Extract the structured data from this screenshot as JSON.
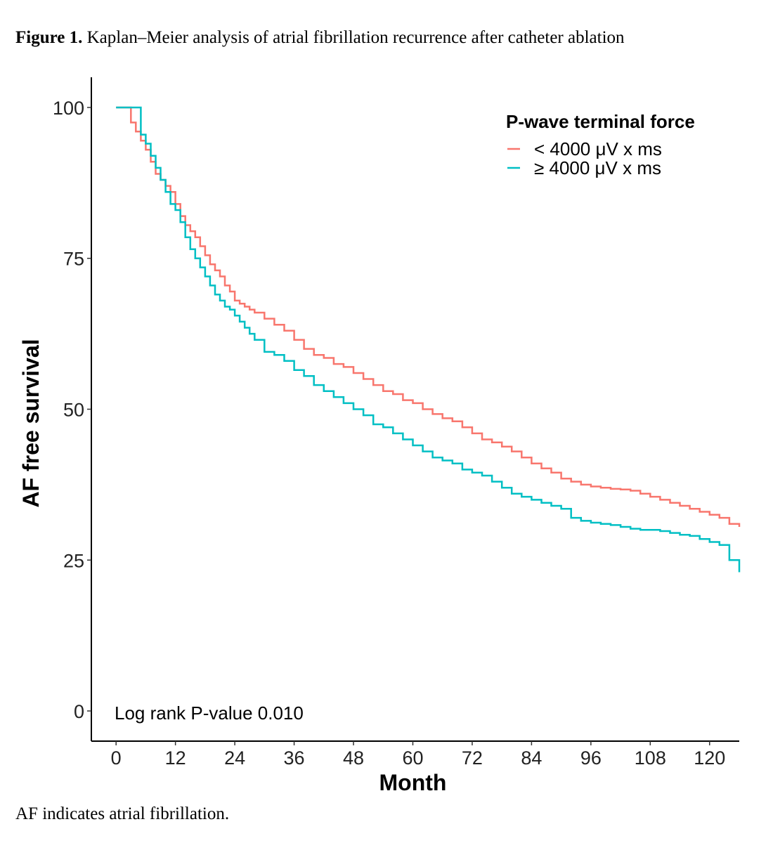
{
  "caption": {
    "label": "Figure 1.",
    "text": "Kaplan–Meier analysis of atrial fibrillation recurrence after catheter ablation"
  },
  "footnote": "AF indicates atrial fibrillation.",
  "chart_data": {
    "type": "line",
    "step": true,
    "xlabel": "Month",
    "ylabel": "AF free survival",
    "xlim": [
      -5,
      126
    ],
    "ylim": [
      -5,
      105
    ],
    "xticks": [
      0,
      12,
      24,
      36,
      48,
      60,
      72,
      84,
      96,
      108,
      120
    ],
    "yticks": [
      0,
      25,
      50,
      75,
      100
    ],
    "legend": {
      "title": "P-wave terminal force",
      "position": "top-right"
    },
    "annotation": "Log rank P-value 0.010",
    "series": [
      {
        "name": "< 4000 μV x ms",
        "color": "#F8766D",
        "x": [
          0,
          3,
          4,
          5,
          6,
          7,
          8,
          9,
          10,
          11,
          12,
          13,
          14,
          15,
          16,
          17,
          18,
          19,
          20,
          21,
          22,
          23,
          24,
          25,
          26,
          27,
          28,
          30,
          32,
          34,
          36,
          38,
          40,
          42,
          44,
          46,
          48,
          50,
          52,
          54,
          56,
          58,
          60,
          62,
          64,
          66,
          68,
          70,
          72,
          74,
          76,
          78,
          80,
          82,
          84,
          86,
          88,
          90,
          92,
          94,
          96,
          98,
          100,
          102,
          104,
          106,
          108,
          110,
          112,
          114,
          116,
          118,
          120,
          122,
          124,
          126
        ],
        "y": [
          100,
          97.5,
          96,
          94.5,
          93,
          91,
          89,
          88,
          87,
          86,
          84,
          82,
          80.5,
          79.5,
          78.5,
          77,
          75.5,
          74,
          73,
          72,
          70.5,
          69.5,
          68,
          67.5,
          67,
          66.5,
          66,
          65,
          64,
          63,
          61.5,
          60,
          59,
          58.5,
          57.5,
          57,
          56,
          55,
          54,
          53,
          52.5,
          51.5,
          51,
          50,
          49.2,
          48.5,
          48,
          47,
          46,
          45,
          44.5,
          43.8,
          43,
          42,
          41,
          40.2,
          39.5,
          38.5,
          38,
          37.5,
          37.2,
          37,
          36.8,
          36.7,
          36.5,
          36,
          35.5,
          35,
          34.5,
          34,
          33.5,
          33,
          32.5,
          32,
          31,
          30.5
        ]
      },
      {
        "name": "≥ 4000 μV x ms",
        "color": "#00BFC4",
        "x": [
          0,
          5,
          6,
          7,
          8,
          9,
          10,
          11,
          12,
          13,
          14,
          15,
          16,
          17,
          18,
          19,
          20,
          21,
          22,
          23,
          24,
          25,
          26,
          27,
          28,
          30,
          32,
          34,
          36,
          38,
          40,
          42,
          44,
          46,
          48,
          50,
          52,
          54,
          56,
          58,
          60,
          62,
          64,
          66,
          68,
          70,
          72,
          74,
          76,
          78,
          80,
          82,
          84,
          86,
          88,
          90,
          92,
          94,
          96,
          98,
          100,
          102,
          104,
          106,
          108,
          110,
          112,
          114,
          116,
          118,
          120,
          122,
          124,
          126
        ],
        "y": [
          100,
          95.5,
          94,
          92,
          90,
          88,
          86,
          84,
          83,
          81,
          78.5,
          76.5,
          75,
          73.5,
          72,
          70.5,
          69,
          68,
          67,
          66.5,
          65.5,
          64.5,
          63.5,
          62.5,
          61.5,
          59.5,
          59,
          58,
          56.5,
          55.5,
          54,
          53,
          52,
          51,
          50,
          49,
          47.5,
          47,
          46,
          45,
          44,
          43,
          42,
          41.5,
          41,
          40,
          39.5,
          39,
          38,
          37,
          36,
          35.5,
          35,
          34.5,
          34,
          33.5,
          32,
          31.5,
          31.2,
          31,
          30.8,
          30.5,
          30.2,
          30,
          30,
          29.8,
          29.5,
          29.2,
          29,
          28.5,
          28,
          27.5,
          25,
          23
        ]
      }
    ]
  }
}
